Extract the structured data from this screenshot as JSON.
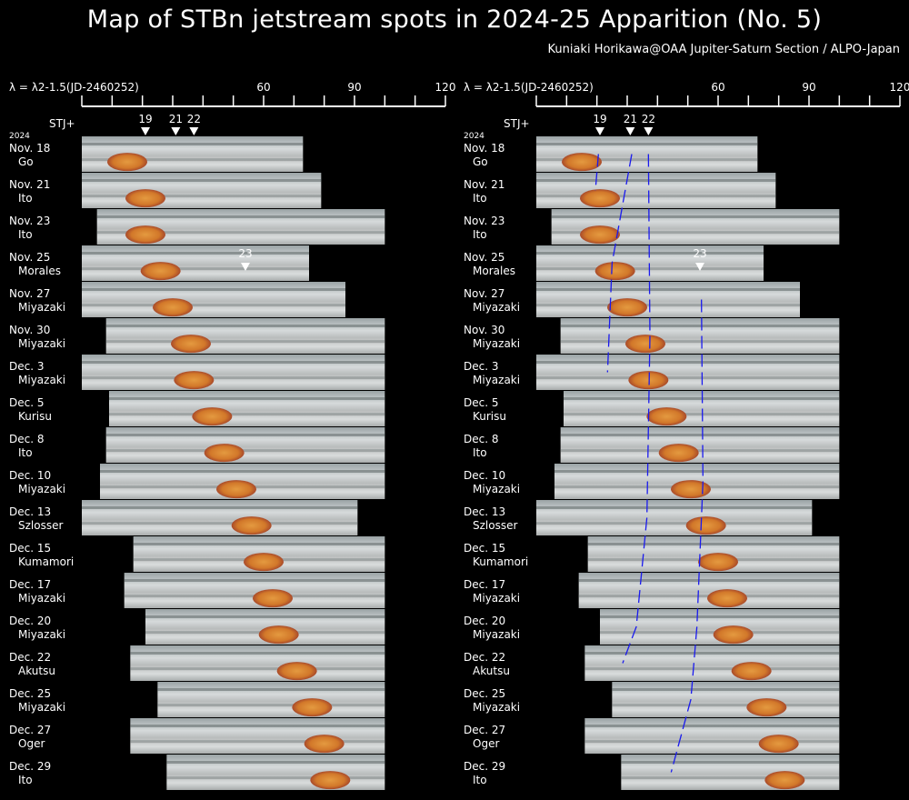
{
  "title": "Map of STBn jetstream spots in 2024-25 Apparition (No. 5)",
  "credit": "Kuniaki Horikawa@OAA Jupiter-Saturn Section / ALPO-Japan",
  "axis": {
    "label": "λ = λ2-1.5(JD-2460252)",
    "min": 0,
    "max": 120,
    "ticks": [
      60,
      90,
      120
    ],
    "tick_labels": [
      "60",
      "90",
      "120"
    ]
  },
  "stj_label": "STJ+",
  "year_label": "2024",
  "spots": [
    {
      "label": "19",
      "lambda": 21
    },
    {
      "label": "21",
      "lambda": 31
    },
    {
      "label": "22",
      "lambda": 37
    }
  ],
  "late_spot": {
    "label": "23",
    "lambda": 54,
    "row": 3
  },
  "colors": {
    "background": "#000000",
    "text": "#ffffff",
    "track": "#1a1aee",
    "grs": "#d2782a",
    "cloud": "#cfd3d6"
  },
  "observations": [
    {
      "date": "Nov. 18",
      "observer": "Go",
      "start": 0,
      "end": 73
    },
    {
      "date": "Nov. 21",
      "observer": "Ito",
      "start": 0,
      "end": 79
    },
    {
      "date": "Nov. 23",
      "observer": "Ito",
      "start": 5,
      "end": 100
    },
    {
      "date": "Nov. 25",
      "observer": "Morales",
      "start": 0,
      "end": 75
    },
    {
      "date": "Nov. 27",
      "observer": "Miyazaki",
      "start": 0,
      "end": 87
    },
    {
      "date": "Nov. 30",
      "observer": "Miyazaki",
      "start": 8,
      "end": 100
    },
    {
      "date": "Dec. 3",
      "observer": "Miyazaki",
      "start": 0,
      "end": 100
    },
    {
      "date": "Dec. 5",
      "observer": "Kurisu",
      "start": 9,
      "end": 100
    },
    {
      "date": "Dec. 8",
      "observer": "Ito",
      "start": 8,
      "end": 100
    },
    {
      "date": "Dec. 10",
      "observer": "Miyazaki",
      "start": 6,
      "end": 100
    },
    {
      "date": "Dec. 13",
      "observer": "Szlosser",
      "start": 0,
      "end": 91
    },
    {
      "date": "Dec. 15",
      "observer": "Kumamori",
      "start": 17,
      "end": 100
    },
    {
      "date": "Dec. 17",
      "observer": "Miyazaki",
      "start": 14,
      "end": 100
    },
    {
      "date": "Dec. 20",
      "observer": "Miyazaki",
      "start": 21,
      "end": 100
    },
    {
      "date": "Dec. 22",
      "observer": "Akutsu",
      "start": 16,
      "end": 100
    },
    {
      "date": "Dec. 25",
      "observer": "Miyazaki",
      "start": 25,
      "end": 100
    },
    {
      "date": "Dec. 27",
      "observer": "Oger",
      "start": 16,
      "end": 100
    },
    {
      "date": "Dec. 29",
      "observer": "Ito",
      "start": 28,
      "end": 100
    }
  ],
  "grs_lambda": [
    15,
    21,
    21,
    26,
    30,
    36,
    37,
    43,
    47,
    51,
    56,
    60,
    63,
    65,
    71,
    76,
    80,
    82
  ],
  "tracks": [
    {
      "spot": "19",
      "points": [
        [
          20.5,
          0
        ],
        [
          19.5,
          1
        ]
      ]
    },
    {
      "spot": "21",
      "points": [
        [
          31.5,
          0
        ],
        [
          25,
          3
        ],
        [
          24,
          5
        ],
        [
          23.5,
          6
        ]
      ]
    },
    {
      "spot": "22",
      "points": [
        [
          37,
          0
        ],
        [
          37.5,
          5
        ],
        [
          36.5,
          10
        ],
        [
          33,
          13
        ],
        [
          28.5,
          14
        ]
      ]
    },
    {
      "spot": "23",
      "points": [
        [
          54.5,
          4
        ],
        [
          55,
          9
        ],
        [
          53,
          13
        ],
        [
          51,
          15
        ],
        [
          44.5,
          17
        ]
      ]
    }
  ]
}
